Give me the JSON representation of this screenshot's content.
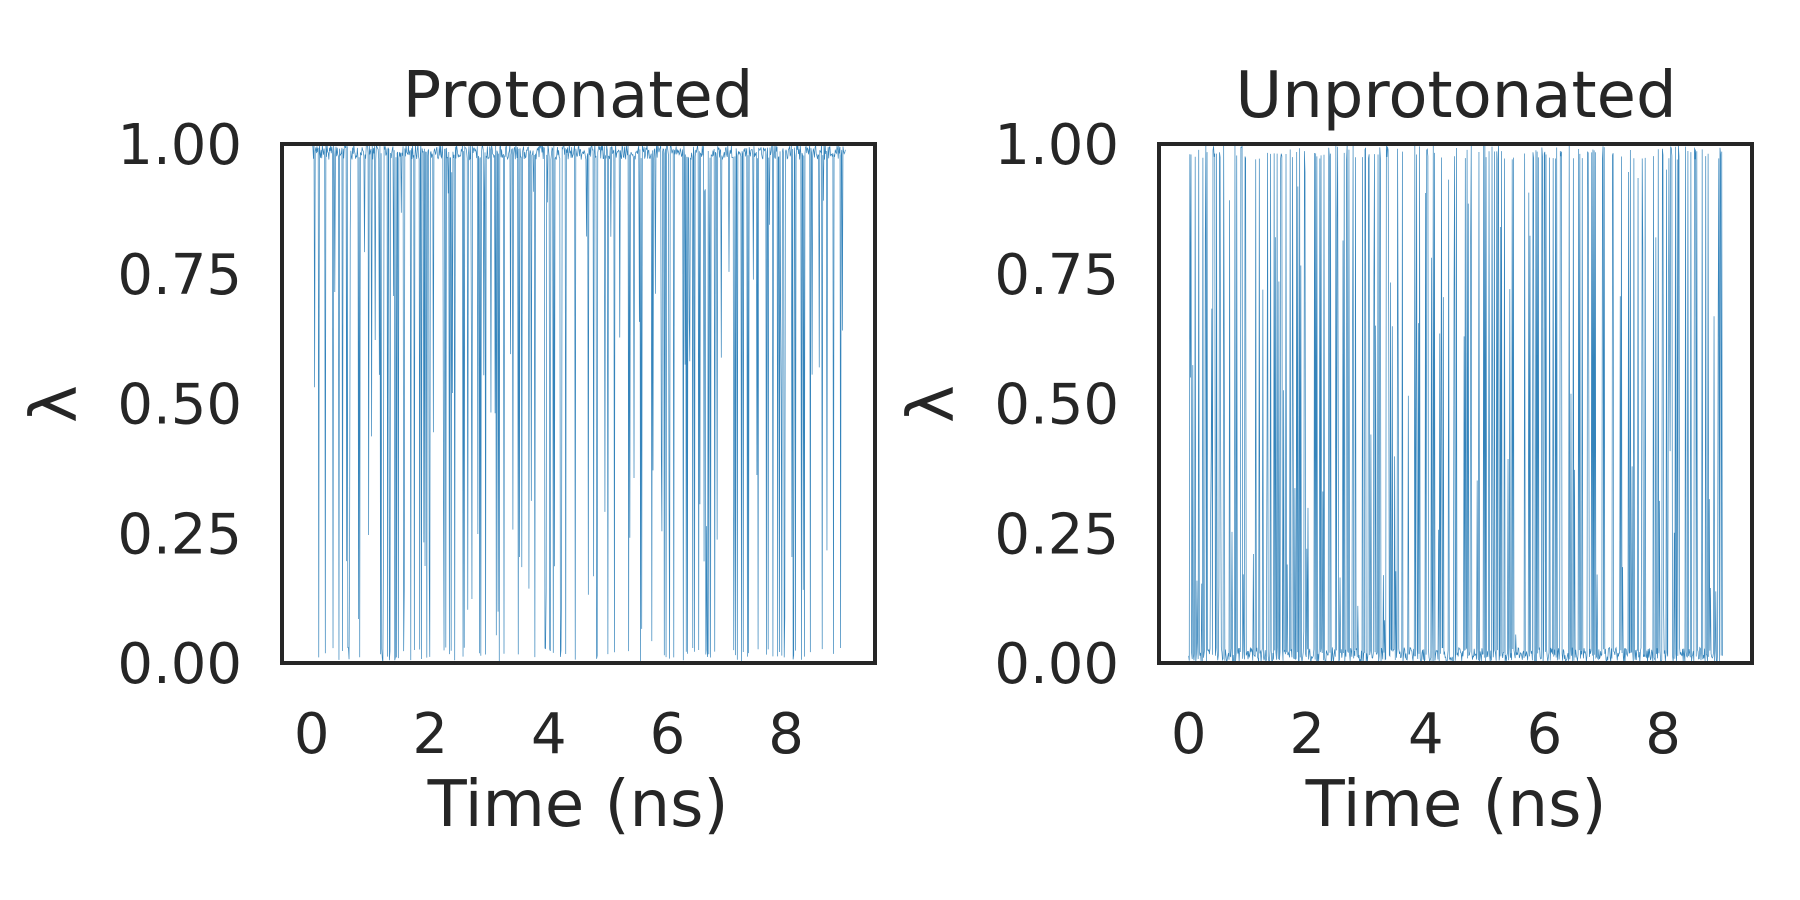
{
  "colors": {
    "trace": "#1f77b4",
    "frame": "#262626",
    "text": "#262626",
    "background": "#ffffff"
  },
  "chart_data": [
    {
      "type": "line",
      "title": "Protonated",
      "xlabel": "Time (ns)",
      "ylabel": "λ",
      "xlim": [
        -0.5,
        9.5
      ],
      "ylim": [
        0.0,
        1.0
      ],
      "xticks": [
        {
          "value": 0,
          "label": "0"
        },
        {
          "value": 2,
          "label": "2"
        },
        {
          "value": 4,
          "label": "4"
        },
        {
          "value": 6,
          "label": "6"
        },
        {
          "value": 8,
          "label": "8"
        }
      ],
      "yticks": [
        {
          "value": 0.0,
          "label": "0.00"
        },
        {
          "value": 0.25,
          "label": "0.25"
        },
        {
          "value": 0.5,
          "label": "0.50"
        },
        {
          "value": 0.75,
          "label": "0.75"
        },
        {
          "value": 1.0,
          "label": "1.00"
        }
      ],
      "grid": false,
      "legend": "none",
      "series": [
        {
          "time_range_ns": [
            0.0,
            9.0
          ],
          "n_samples": 900,
          "fraction_near_1": 0.78,
          "fraction_near_0": 0.12,
          "seed": 7
        }
      ]
    },
    {
      "type": "line",
      "title": "Unprotonated",
      "xlabel": "Time (ns)",
      "ylabel": "λ",
      "xlim": [
        -0.5,
        9.5
      ],
      "ylim": [
        0.0,
        1.0
      ],
      "xticks": [
        {
          "value": 0,
          "label": "0"
        },
        {
          "value": 2,
          "label": "2"
        },
        {
          "value": 4,
          "label": "4"
        },
        {
          "value": 6,
          "label": "6"
        },
        {
          "value": 8,
          "label": "8"
        }
      ],
      "yticks": [
        {
          "value": 0.0,
          "label": "0.00"
        },
        {
          "value": 0.25,
          "label": "0.25"
        },
        {
          "value": 0.5,
          "label": "0.50"
        },
        {
          "value": 0.75,
          "label": "0.75"
        },
        {
          "value": 1.0,
          "label": "1.00"
        }
      ],
      "grid": false,
      "legend": "none",
      "series": [
        {
          "time_range_ns": [
            0.0,
            9.0
          ],
          "n_samples": 900,
          "fraction_near_1": 0.2,
          "fraction_near_0": 0.7,
          "seed": 13
        }
      ]
    }
  ]
}
